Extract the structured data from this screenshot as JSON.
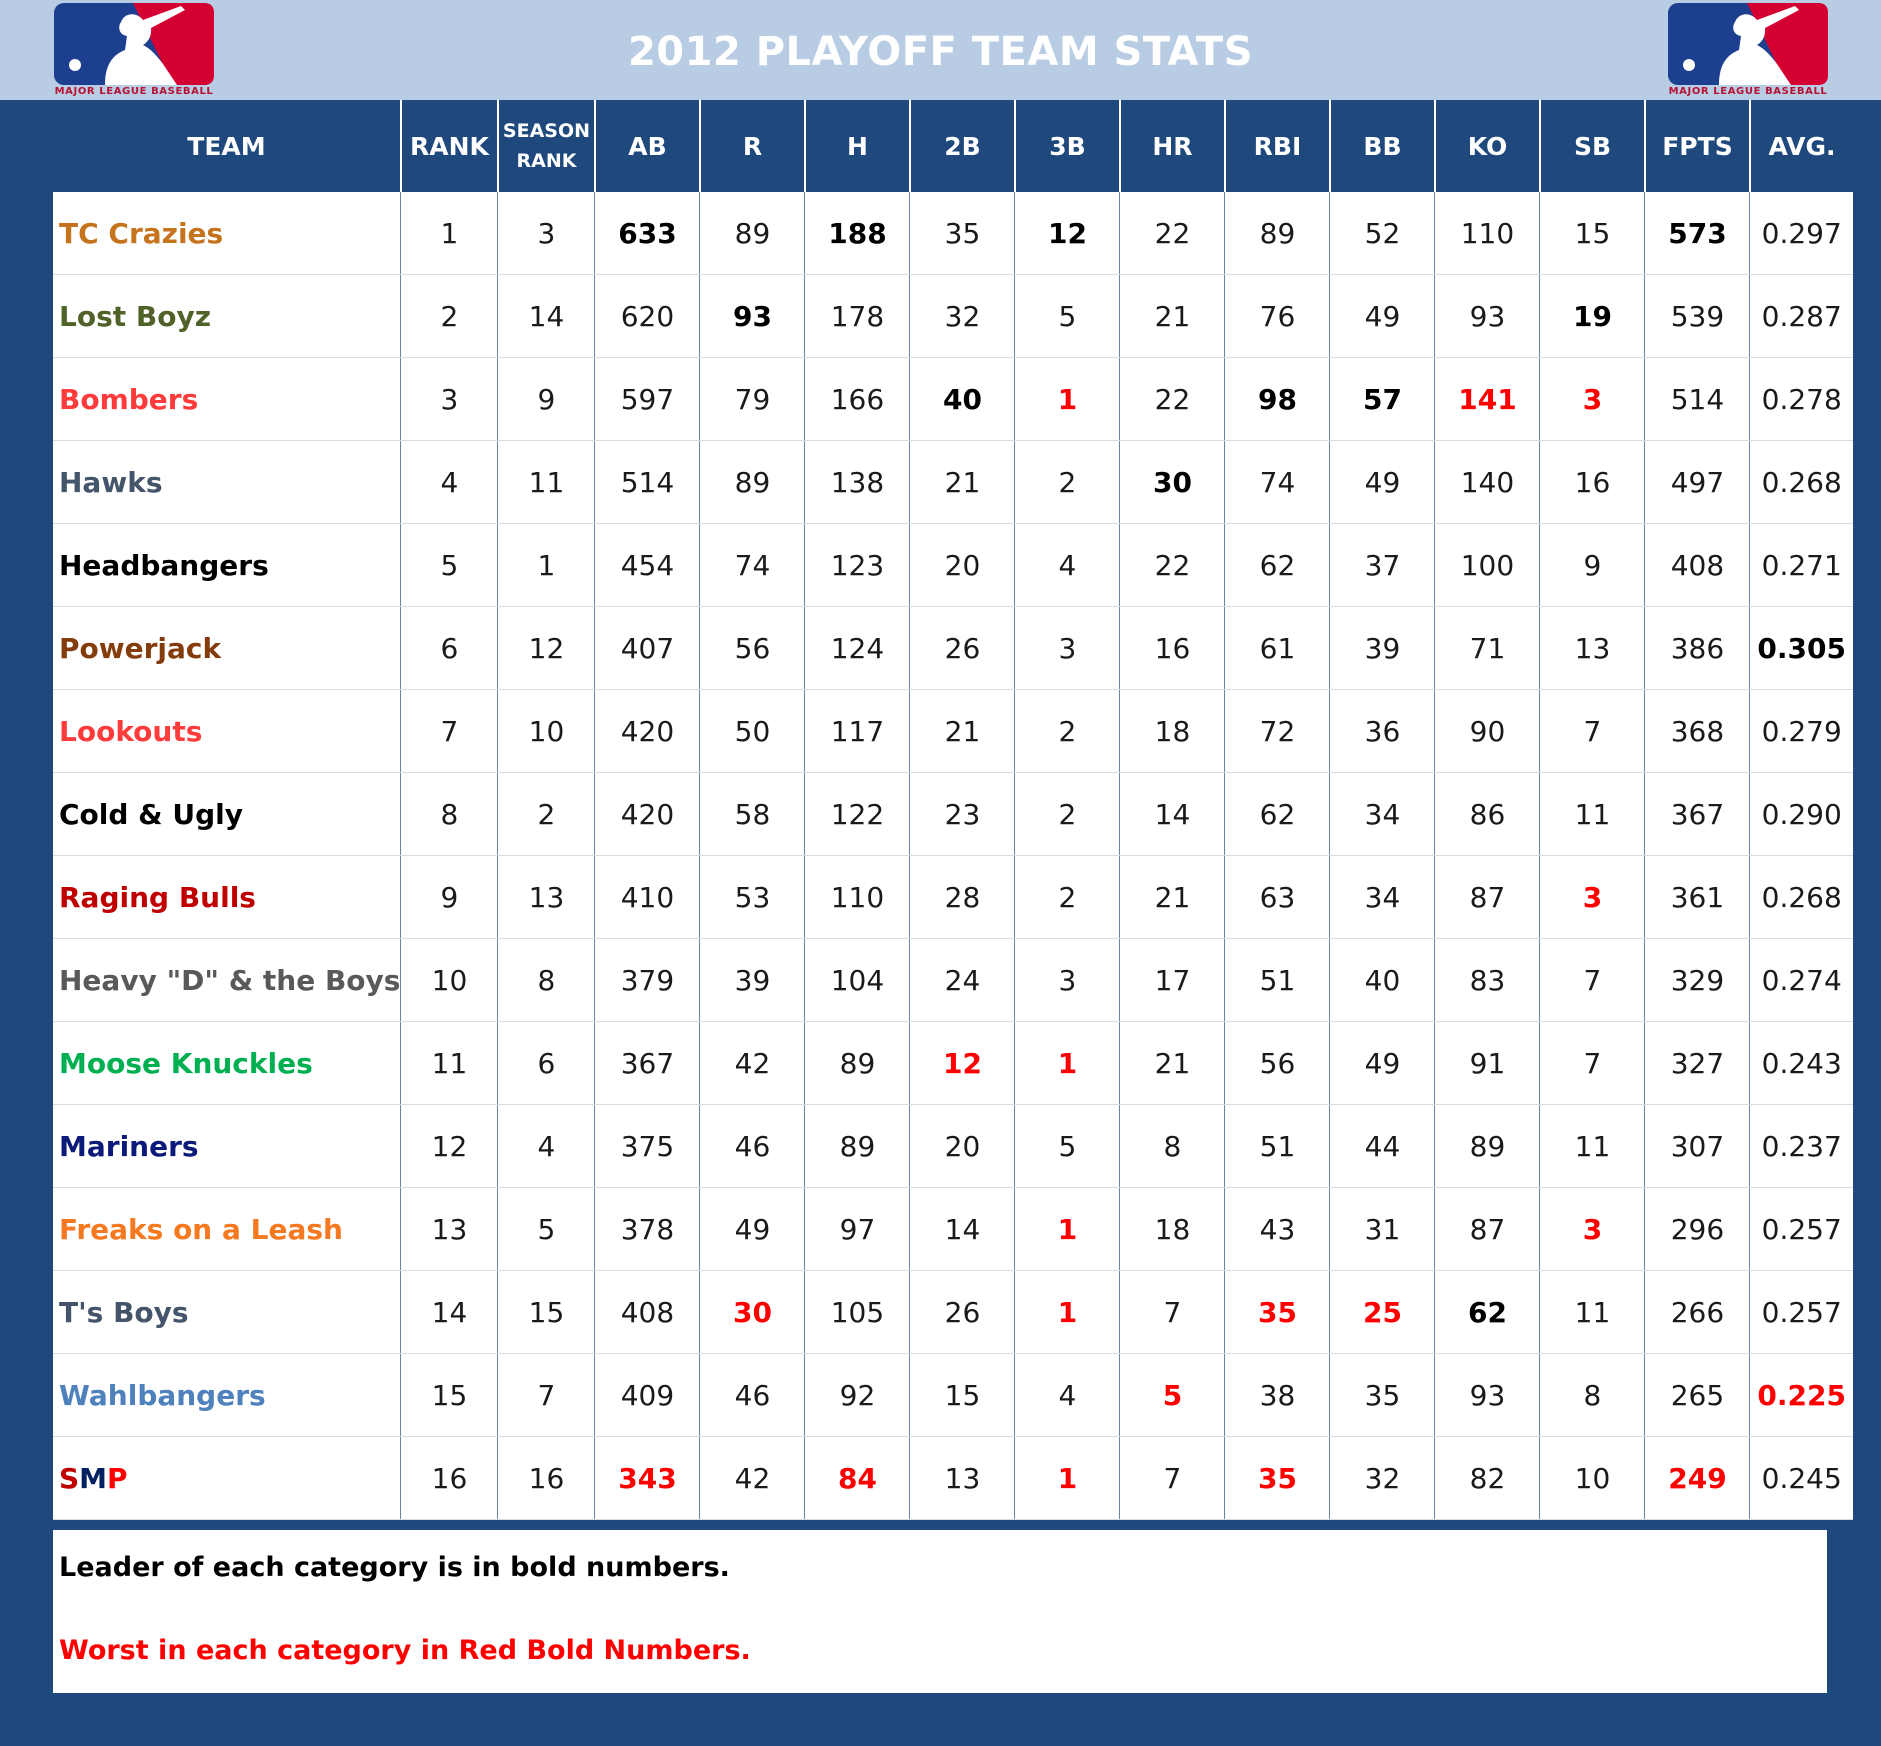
{
  "title": "2012 PLAYOFF TEAM STATS",
  "logo": {
    "text": "MAJOR LEAGUE BASEBALL",
    "icon": "mlb-logo-icon",
    "colors": {
      "blue": "#1d3f8f",
      "red": "#d50032"
    }
  },
  "colors": {
    "header_band": "#b8cce4",
    "frame": "#1f497d",
    "leader": "#000000",
    "worst": "#ff0000"
  },
  "columns": [
    "TEAM",
    "RANK",
    "SEASON RANK",
    "AB",
    "R",
    "H",
    "2B",
    "3B",
    "HR",
    "RBI",
    "BB",
    "KO",
    "SB",
    "FPTS",
    "AVG."
  ],
  "teams": [
    {
      "name": "TC Crazies",
      "color": "#c5731c",
      "values": [
        "1",
        "3",
        "633",
        "89",
        "188",
        "35",
        "12",
        "22",
        "89",
        "52",
        "110",
        "15",
        "573",
        "0.297"
      ],
      "styles": [
        "",
        "",
        "b",
        "",
        "b",
        "",
        "b",
        "",
        "",
        "",
        "",
        "",
        "b",
        ""
      ]
    },
    {
      "name": "Lost Boyz",
      "color": "#4f6228",
      "values": [
        "2",
        "14",
        "620",
        "93",
        "178",
        "32",
        "5",
        "21",
        "76",
        "49",
        "93",
        "19",
        "539",
        "0.287"
      ],
      "styles": [
        "",
        "",
        "",
        "b",
        "",
        "",
        "",
        "",
        "",
        "",
        "",
        "b",
        "",
        ""
      ]
    },
    {
      "name": "Bombers",
      "color": "#ff3b3b",
      "values": [
        "3",
        "9",
        "597",
        "79",
        "166",
        "40",
        "1",
        "22",
        "98",
        "57",
        "141",
        "3",
        "514",
        "0.278"
      ],
      "styles": [
        "",
        "",
        "",
        "",
        "",
        "b",
        "w",
        "",
        "b",
        "b",
        "w",
        "w",
        "",
        ""
      ]
    },
    {
      "name": "Hawks",
      "color": "#44546a",
      "values": [
        "4",
        "11",
        "514",
        "89",
        "138",
        "21",
        "2",
        "30",
        "74",
        "49",
        "140",
        "16",
        "497",
        "0.268"
      ],
      "styles": [
        "",
        "",
        "",
        "",
        "",
        "",
        "",
        "b",
        "",
        "",
        "",
        "",
        "",
        ""
      ]
    },
    {
      "name": "Headbangers",
      "color": "#000000",
      "values": [
        "5",
        "1",
        "454",
        "74",
        "123",
        "20",
        "4",
        "22",
        "62",
        "37",
        "100",
        "9",
        "408",
        "0.271"
      ],
      "styles": [
        "",
        "",
        "",
        "",
        "",
        "",
        "",
        "",
        "",
        "",
        "",
        "",
        "",
        ""
      ]
    },
    {
      "name": "Powerjack",
      "color": "#843c0c",
      "values": [
        "6",
        "12",
        "407",
        "56",
        "124",
        "26",
        "3",
        "16",
        "61",
        "39",
        "71",
        "13",
        "386",
        "0.305"
      ],
      "styles": [
        "",
        "",
        "",
        "",
        "",
        "",
        "",
        "",
        "",
        "",
        "",
        "",
        "",
        "b"
      ]
    },
    {
      "name": "Lookouts",
      "color": "#ff3b3b",
      "values": [
        "7",
        "10",
        "420",
        "50",
        "117",
        "21",
        "2",
        "18",
        "72",
        "36",
        "90",
        "7",
        "368",
        "0.279"
      ],
      "styles": [
        "",
        "",
        "",
        "",
        "",
        "",
        "",
        "",
        "",
        "",
        "",
        "",
        "",
        ""
      ]
    },
    {
      "name": "Cold & Ugly",
      "color": "#000000",
      "values": [
        "8",
        "2",
        "420",
        "58",
        "122",
        "23",
        "2",
        "14",
        "62",
        "34",
        "86",
        "11",
        "367",
        "0.290"
      ],
      "styles": [
        "",
        "",
        "",
        "",
        "",
        "",
        "",
        "",
        "",
        "",
        "",
        "",
        "",
        ""
      ]
    },
    {
      "name": "Raging Bulls",
      "color": "#c00000",
      "values": [
        "9",
        "13",
        "410",
        "53",
        "110",
        "28",
        "2",
        "21",
        "63",
        "34",
        "87",
        "3",
        "361",
        "0.268"
      ],
      "styles": [
        "",
        "",
        "",
        "",
        "",
        "",
        "",
        "",
        "",
        "",
        "",
        "w",
        "",
        ""
      ]
    },
    {
      "name": "Heavy \"D\" & the Boys",
      "color": "#595959",
      "values": [
        "10",
        "8",
        "379",
        "39",
        "104",
        "24",
        "3",
        "17",
        "51",
        "40",
        "83",
        "7",
        "329",
        "0.274"
      ],
      "styles": [
        "",
        "",
        "",
        "",
        "",
        "",
        "",
        "",
        "",
        "",
        "",
        "",
        "",
        ""
      ]
    },
    {
      "name": "Moose Knuckles",
      "color": "#00b050",
      "values": [
        "11",
        "6",
        "367",
        "42",
        "89",
        "12",
        "1",
        "21",
        "56",
        "49",
        "91",
        "7",
        "327",
        "0.243"
      ],
      "styles": [
        "",
        "",
        "",
        "",
        "",
        "w",
        "w",
        "",
        "",
        "",
        "",
        "",
        "",
        ""
      ]
    },
    {
      "name": "Mariners",
      "color": "#0b1a7a",
      "values": [
        "12",
        "4",
        "375",
        "46",
        "89",
        "20",
        "5",
        "8",
        "51",
        "44",
        "89",
        "11",
        "307",
        "0.237"
      ],
      "styles": [
        "",
        "",
        "",
        "",
        "",
        "",
        "",
        "",
        "",
        "",
        "",
        "",
        "",
        ""
      ]
    },
    {
      "name": "Freaks on a Leash",
      "color": "#f47920",
      "values": [
        "13",
        "5",
        "378",
        "49",
        "97",
        "14",
        "1",
        "18",
        "43",
        "31",
        "87",
        "3",
        "296",
        "0.257"
      ],
      "styles": [
        "",
        "",
        "",
        "",
        "",
        "",
        "w",
        "",
        "",
        "",
        "",
        "w",
        "",
        ""
      ]
    },
    {
      "name": "T's Boys",
      "color": "#44546a",
      "values": [
        "14",
        "15",
        "408",
        "30",
        "105",
        "26",
        "1",
        "7",
        "35",
        "25",
        "62",
        "11",
        "266",
        "0.257"
      ],
      "styles": [
        "",
        "",
        "",
        "w",
        "",
        "",
        "w",
        "",
        "w",
        "w",
        "b",
        "",
        "",
        ""
      ]
    },
    {
      "name": "Wahlbangers",
      "color": "#4f81bd",
      "values": [
        "15",
        "7",
        "409",
        "46",
        "92",
        "15",
        "4",
        "5",
        "38",
        "35",
        "93",
        "8",
        "265",
        "0.225"
      ],
      "styles": [
        "",
        "",
        "",
        "",
        "",
        "",
        "",
        "w",
        "",
        "",
        "",
        "",
        "",
        "w"
      ]
    },
    {
      "name_parts": [
        "S",
        "M",
        "P"
      ],
      "name_colors": [
        "#c00000",
        "#002060",
        "#ff0000"
      ],
      "values": [
        "16",
        "16",
        "343",
        "42",
        "84",
        "13",
        "1",
        "7",
        "35",
        "32",
        "82",
        "10",
        "249",
        "0.245"
      ],
      "styles": [
        "",
        "",
        "w",
        "",
        "w",
        "",
        "w",
        "",
        "w",
        "",
        "",
        "",
        "w",
        ""
      ]
    }
  ],
  "legend": {
    "leader": "Leader of each category is in bold numbers.",
    "worst": "Worst in each category in Red Bold Numbers."
  }
}
